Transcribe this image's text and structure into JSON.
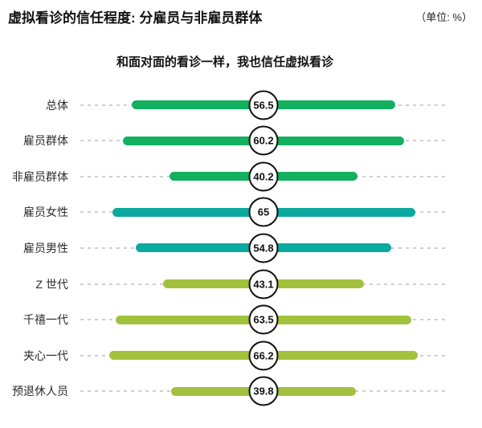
{
  "header": {
    "title": "虚拟看诊的信任程度: 分雇员与非雇员群体",
    "unit_label": "（单位: %）"
  },
  "chart_data": {
    "type": "bar",
    "orientation": "horizontal-centered-lollipop",
    "title": "虚拟看诊的信任程度: 分雇员与非雇员群体",
    "subtitle": "和面对面的看诊一样，我也信任虚拟看诊",
    "unit": "%",
    "xlim": [
      0,
      100
    ],
    "grid": false,
    "legend": "none",
    "categories": [
      "总体",
      "雇员群体",
      "非雇员群体",
      "雇员女性",
      "雇员男性",
      "Z 世代",
      "千禧一代",
      "夹心一代",
      "预退休人员"
    ],
    "values": [
      56.5,
      60.2,
      40.2,
      65,
      54.8,
      43.1,
      63.5,
      66.2,
      39.8
    ],
    "value_labels": [
      "56.5",
      "60.2",
      "40.2",
      "65",
      "54.8",
      "43.1",
      "63.5",
      "66.2",
      "39.8"
    ],
    "bar_colors": [
      "#13b05f",
      "#13b05f",
      "#13b05f",
      "#0ca9a0",
      "#0ca9a0",
      "#a2c23d",
      "#a2c23d",
      "#a2c23d",
      "#a2c23d"
    ],
    "accent_colors": {
      "green": "#13b05f",
      "teal": "#0ca9a0",
      "yellow_green": "#a2c23d",
      "leader_line": "#cfcfcf",
      "text": "#111111"
    }
  }
}
